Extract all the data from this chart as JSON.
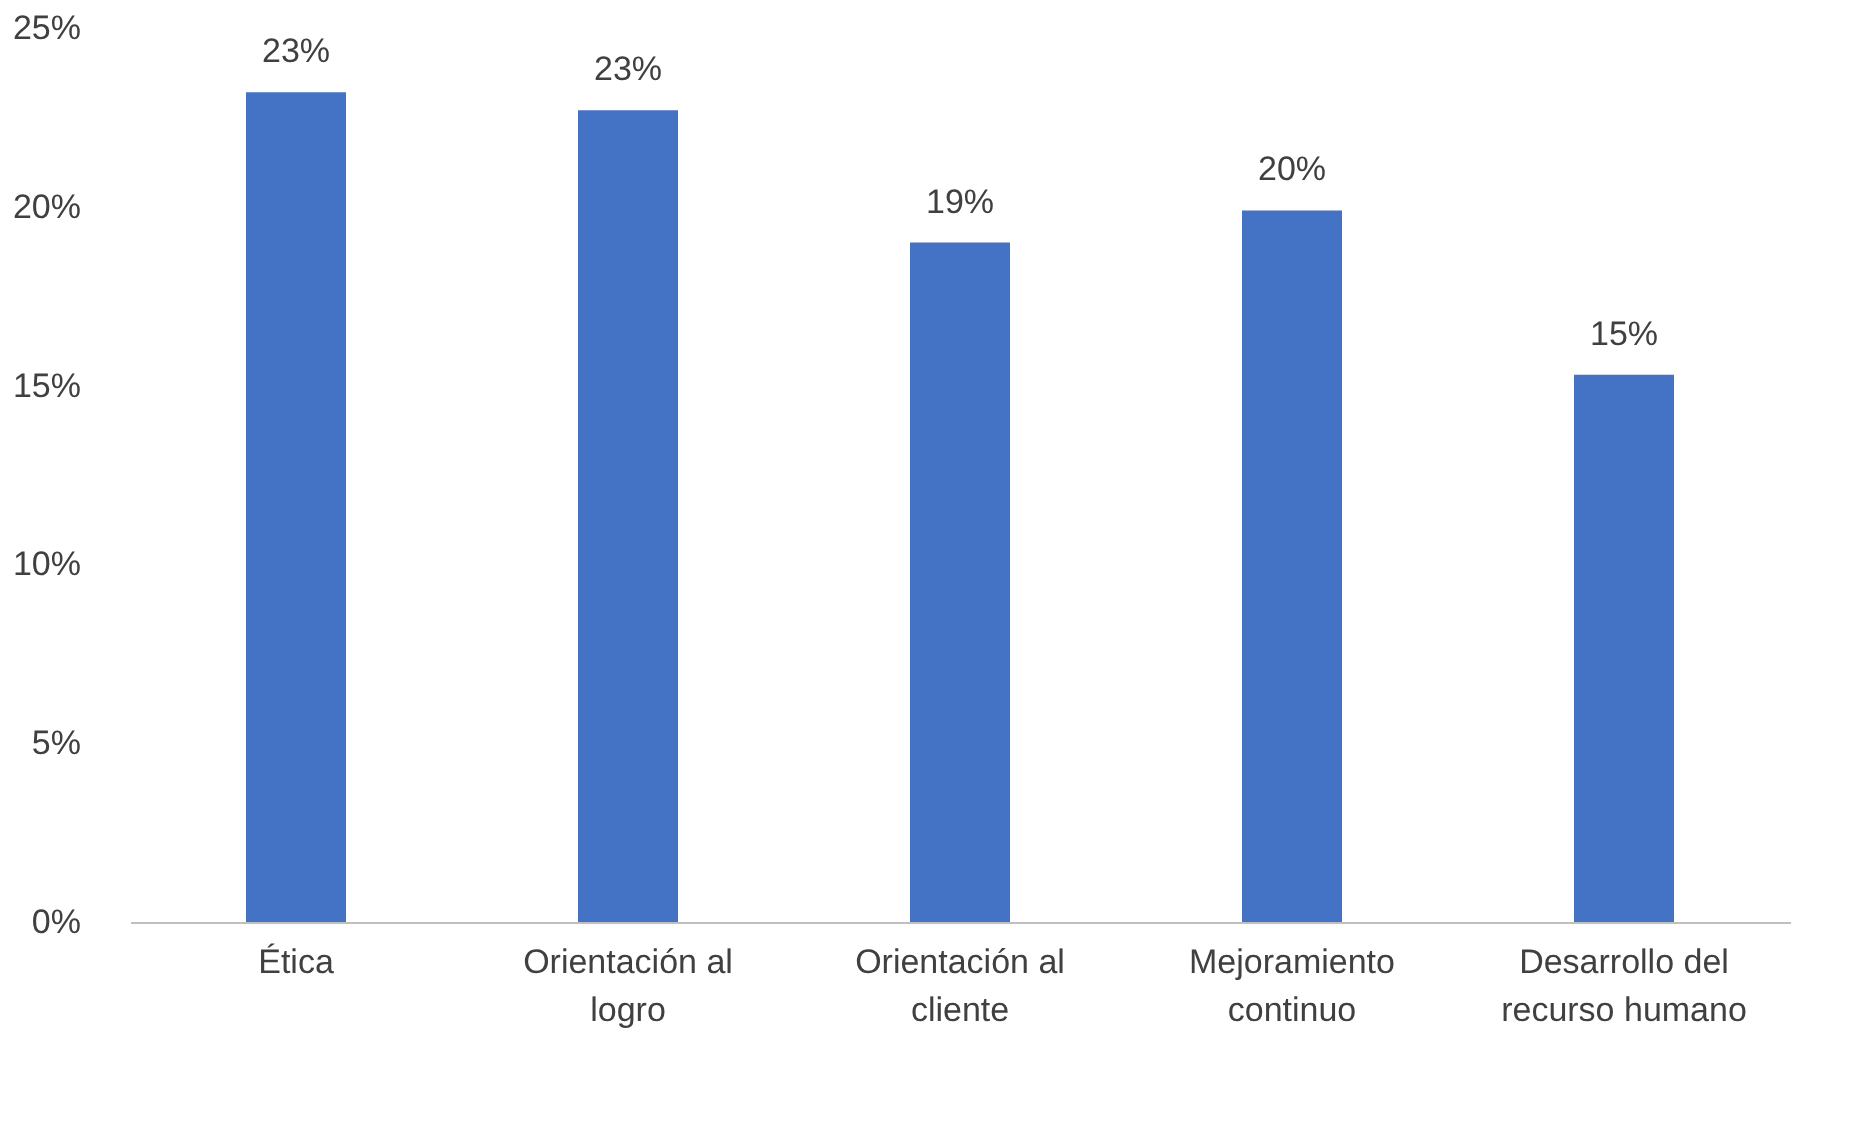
{
  "chart_data": {
    "type": "bar",
    "categories": [
      "Ética",
      "Orientación al logro",
      "Orientación al cliente",
      "Mejoramiento continuo",
      "Desarrollo del recurso humano"
    ],
    "values": [
      23.2,
      22.7,
      19.0,
      19.9,
      15.3
    ],
    "value_labels": [
      "23%",
      "23%",
      "19%",
      "20%",
      "15%"
    ],
    "color": "#4472c4",
    "ylim": [
      0,
      25
    ],
    "yticks": [
      {
        "value": 0,
        "label": "0%"
      },
      {
        "value": 5,
        "label": "5%"
      },
      {
        "value": 10,
        "label": "10%"
      },
      {
        "value": 15,
        "label": "15%"
      },
      {
        "value": 20,
        "label": "20%"
      },
      {
        "value": 25,
        "label": "25%"
      }
    ],
    "grid": false
  }
}
